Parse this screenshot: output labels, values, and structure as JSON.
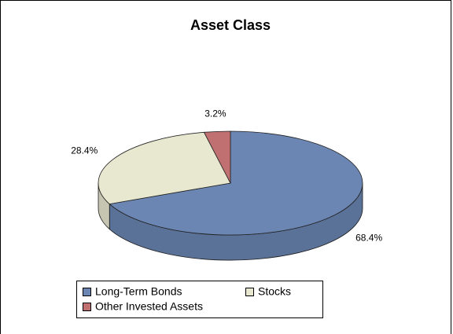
{
  "chart_data": {
    "type": "pie",
    "title": "Asset Class",
    "categories": [
      "Long-Term Bonds",
      "Stocks",
      "Other Invested Assets"
    ],
    "values": [
      68.4,
      28.4,
      3.2
    ],
    "value_labels": [
      "68.4%",
      "28.4%",
      "3.2%"
    ],
    "colors": [
      "#6b86b3",
      "#e8e8d0",
      "#c07070"
    ]
  }
}
